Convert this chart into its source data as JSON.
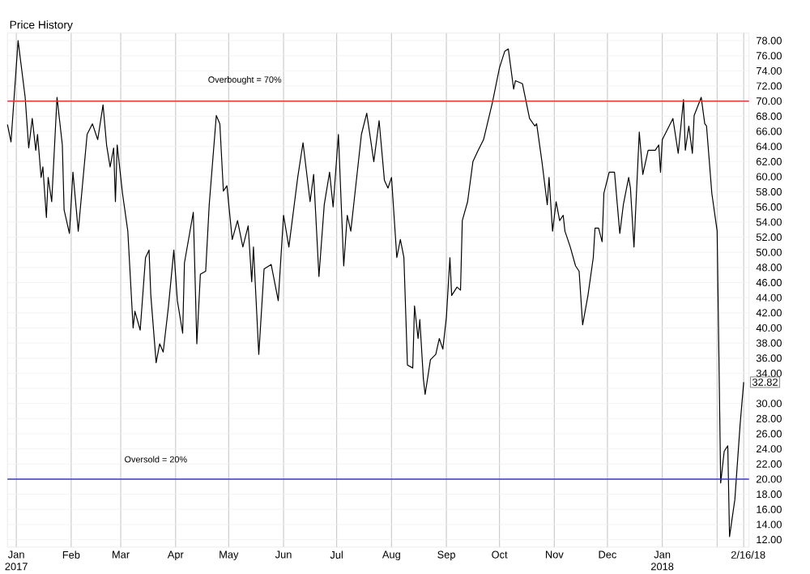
{
  "chart_data": {
    "type": "line",
    "title": "Price History",
    "x": [
      "2016-12-27",
      "2016-12-29",
      "2017-01-02",
      "2017-01-06",
      "2017-01-08",
      "2017-01-10",
      "2017-01-12",
      "2017-01-13",
      "2017-01-15",
      "2017-01-16",
      "2017-01-18",
      "2017-01-19",
      "2017-01-21",
      "2017-01-24",
      "2017-01-27",
      "2017-01-28",
      "2017-01-31",
      "2017-02-02",
      "2017-02-05",
      "2017-02-10",
      "2017-02-13",
      "2017-02-16",
      "2017-02-19",
      "2017-02-21",
      "2017-02-23",
      "2017-02-25",
      "2017-02-26",
      "2017-02-27",
      "2017-03-02",
      "2017-03-05",
      "2017-03-08",
      "2017-03-09",
      "2017-03-12",
      "2017-03-15",
      "2017-03-17",
      "2017-03-18",
      "2017-03-21",
      "2017-03-23",
      "2017-03-25",
      "2017-03-28",
      "2017-03-31",
      "2017-04-02",
      "2017-04-05",
      "2017-04-06",
      "2017-04-11",
      "2017-04-13",
      "2017-04-15",
      "2017-04-18",
      "2017-04-20",
      "2017-04-24",
      "2017-04-26",
      "2017-04-28",
      "2017-04-30",
      "2017-05-03",
      "2017-05-06",
      "2017-05-09",
      "2017-05-12",
      "2017-05-14",
      "2017-05-15",
      "2017-05-18",
      "2017-05-21",
      "2017-05-25",
      "2017-05-29",
      "2017-06-01",
      "2017-06-04",
      "2017-06-09",
      "2017-06-12",
      "2017-06-16",
      "2017-06-18",
      "2017-06-21",
      "2017-06-24",
      "2017-06-27",
      "2017-06-29",
      "2017-07-02",
      "2017-07-05",
      "2017-07-07",
      "2017-07-09",
      "2017-07-12",
      "2017-07-15",
      "2017-07-18",
      "2017-07-22",
      "2017-07-25",
      "2017-07-28",
      "2017-07-30",
      "2017-08-01",
      "2017-08-04",
      "2017-08-06",
      "2017-08-08",
      "2017-08-10",
      "2017-08-13",
      "2017-08-14",
      "2017-08-16",
      "2017-08-17",
      "2017-08-19",
      "2017-08-20",
      "2017-08-23",
      "2017-08-26",
      "2017-08-28",
      "2017-08-30",
      "2017-09-01",
      "2017-09-03",
      "2017-09-04",
      "2017-09-07",
      "2017-09-09",
      "2017-09-10",
      "2017-09-13",
      "2017-09-16",
      "2017-09-19",
      "2017-09-22",
      "2017-09-27",
      "2017-10-01",
      "2017-10-04",
      "2017-10-06",
      "2017-10-09",
      "2017-10-10",
      "2017-10-14",
      "2017-10-18",
      "2017-10-21",
      "2017-10-22",
      "2017-10-25",
      "2017-10-28",
      "2017-10-29",
      "2017-10-31",
      "2017-11-02",
      "2017-11-04",
      "2017-11-06",
      "2017-11-07",
      "2017-11-10",
      "2017-11-13",
      "2017-11-15",
      "2017-11-17",
      "2017-11-20",
      "2017-11-23",
      "2017-11-24",
      "2017-11-26",
      "2017-11-28",
      "2017-11-29",
      "2017-12-02",
      "2017-12-05",
      "2017-12-08",
      "2017-12-10",
      "2017-12-13",
      "2017-12-14",
      "2017-12-16",
      "2017-12-19",
      "2017-12-21",
      "2017-12-24",
      "2017-12-28",
      "2017-12-30",
      "2017-12-31",
      "2018-01-01",
      "2018-01-04",
      "2018-01-07",
      "2018-01-10",
      "2018-01-13",
      "2018-01-14",
      "2018-01-16",
      "2018-01-18",
      "2018-01-19",
      "2018-01-23",
      "2018-01-25",
      "2018-01-26",
      "2018-01-29",
      "2018-02-01",
      "2018-02-03",
      "2018-02-05",
      "2018-02-07",
      "2018-02-08",
      "2018-02-11",
      "2018-02-14",
      "2018-02-16"
    ],
    "series": [
      {
        "color": "#000000",
        "values": [
          66.9,
          64.6,
          78,
          70.5,
          63.8,
          67.7,
          63.5,
          65.6,
          59.9,
          61.3,
          54.6,
          59.9,
          56.7,
          70.5,
          64.2,
          55.6,
          52.5,
          60.6,
          52.8,
          65.6,
          67.0,
          64.9,
          69.5,
          64.2,
          61.3,
          63.8,
          56.7,
          64.2,
          57.8,
          52.8,
          40.0,
          42.2,
          39.7,
          49.3,
          50.3,
          44.3,
          35.4,
          37.9,
          36.8,
          42.9,
          50.3,
          43.6,
          39.3,
          48.6,
          55.3,
          37.9,
          47.1,
          47.5,
          56.3,
          68.1,
          67.0,
          58.1,
          58.8,
          51.7,
          54.2,
          50.7,
          53.5,
          46.1,
          50.7,
          36.5,
          47.8,
          48.4,
          43.6,
          54.9,
          50.7,
          59.9,
          64.5,
          56.7,
          60.3,
          46.8,
          56.3,
          60.6,
          56.0,
          65.6,
          48.2,
          54.9,
          52.8,
          59.2,
          65.6,
          68.4,
          62.0,
          67.4,
          59.5,
          58.5,
          59.9,
          49.3,
          51.7,
          49.3,
          35.1,
          34.7,
          42.9,
          38.6,
          41.1,
          33.3,
          31.2,
          35.8,
          36.5,
          38.6,
          37.2,
          41.4,
          49.3,
          44.3,
          45.4,
          45.0,
          54.2,
          56.7,
          62.0,
          63.5,
          64.9,
          69.8,
          74.4,
          76.6,
          76.9,
          71.6,
          72.7,
          72.3,
          67.7,
          66.7,
          67.0,
          62.0,
          56.3,
          59.9,
          52.8,
          56.7,
          54.2,
          54.9,
          52.8,
          50.7,
          48.2,
          47.5,
          40.4,
          44.3,
          49.3,
          53.2,
          53.2,
          51.4,
          57.8,
          60.6,
          60.6,
          52.5,
          56.3,
          59.9,
          58.5,
          50.7,
          65.9,
          60.3,
          63.5,
          63.5,
          64.2,
          60.6,
          64.9,
          66.3,
          67.7,
          63.1,
          70.2,
          63.5,
          66.7,
          63.1,
          68.1,
          70.5,
          67.0,
          66.7,
          57.8,
          52.8,
          19.5,
          23.7,
          24.4,
          12.4,
          17.3,
          27.3,
          32.82
        ],
        "value_labels": [
          null,
          null,
          null,
          null,
          null,
          null,
          null,
          null,
          null,
          null,
          null,
          null,
          null,
          null,
          null,
          null,
          null,
          null,
          null,
          null,
          null,
          null,
          null,
          null,
          null,
          null,
          null,
          null,
          null,
          null,
          null,
          null,
          null,
          null,
          null,
          null,
          null,
          null,
          null,
          null,
          null,
          null,
          null,
          null,
          null,
          null,
          null,
          null,
          null,
          null,
          null,
          null,
          null,
          null,
          null,
          null,
          null,
          null,
          null,
          null,
          null,
          null,
          null,
          null,
          null,
          null,
          null,
          null,
          null,
          null,
          null,
          null,
          null,
          null,
          null,
          null,
          null,
          null,
          null,
          null,
          null,
          null,
          null,
          null,
          null,
          null,
          null,
          null,
          null,
          null,
          null,
          null,
          null,
          null,
          null,
          null,
          null,
          null,
          null,
          null,
          null,
          null,
          null,
          null,
          null,
          null,
          null,
          null,
          null,
          null,
          null,
          null,
          null,
          null,
          null,
          null,
          null,
          null,
          null,
          null,
          null,
          null,
          null,
          null,
          null,
          null,
          null,
          null,
          null,
          null,
          null,
          null,
          null,
          null,
          null,
          null,
          null,
          null,
          null,
          null,
          null,
          null,
          null,
          null,
          null,
          null,
          null,
          null,
          null,
          null,
          null,
          null,
          null,
          null,
          null,
          null,
          null,
          null,
          null,
          null,
          null,
          null,
          null,
          null,
          null,
          null,
          null,
          null,
          null,
          null,
          "32.82"
        ]
      }
    ],
    "xlim": [
      "2016-12-27",
      "2018-02-19"
    ],
    "xticks": [
      {
        "value": "2017-01-01",
        "label": "Jan 2017"
      },
      {
        "value": "2017-02-01",
        "label": "Feb"
      },
      {
        "value": "2017-03-01",
        "label": "Mar"
      },
      {
        "value": "2017-04-01",
        "label": "Apr"
      },
      {
        "value": "2017-05-01",
        "label": "May"
      },
      {
        "value": "2017-06-01",
        "label": "Jun"
      },
      {
        "value": "2017-07-01",
        "label": "Jul"
      },
      {
        "value": "2017-08-01",
        "label": "Aug"
      },
      {
        "value": "2017-09-01",
        "label": "Sep"
      },
      {
        "value": "2017-10-01",
        "label": "Oct"
      },
      {
        "value": "2017-11-01",
        "label": "Nov"
      },
      {
        "value": "2017-12-01",
        "label": "Dec"
      },
      {
        "value": "2018-01-01",
        "label": "Jan 2018"
      },
      {
        "value": "2018-02-01",
        "label": null
      },
      {
        "value": "2018-02-16",
        "label": "2/16/18"
      }
    ],
    "ylim": [
      11,
      79
    ],
    "yticks": [
      {
        "value": 12,
        "label": "12.00"
      },
      {
        "value": 14,
        "label": "14.00"
      },
      {
        "value": 16,
        "label": "16.00"
      },
      {
        "value": 18,
        "label": "18.00"
      },
      {
        "value": 20,
        "label": "20.00"
      },
      {
        "value": 22,
        "label": "22.00"
      },
      {
        "value": 24,
        "label": "24.00"
      },
      {
        "value": 26,
        "label": "26.00"
      },
      {
        "value": 28,
        "label": "28.00"
      },
      {
        "value": 30,
        "label": "30.00"
      },
      {
        "value": 32,
        "label": null
      },
      {
        "value": 34,
        "label": "34.00"
      },
      {
        "value": 36,
        "label": "36.00"
      },
      {
        "value": 38,
        "label": "38.00"
      },
      {
        "value": 40,
        "label": "40.00"
      },
      {
        "value": 42,
        "label": "42.00"
      },
      {
        "value": 44,
        "label": "44.00"
      },
      {
        "value": 46,
        "label": "46.00"
      },
      {
        "value": 48,
        "label": "48.00"
      },
      {
        "value": 50,
        "label": "50.00"
      },
      {
        "value": 52,
        "label": "52.00"
      },
      {
        "value": 54,
        "label": "54.00"
      },
      {
        "value": 56,
        "label": "56.00"
      },
      {
        "value": 58,
        "label": "58.00"
      },
      {
        "value": 60,
        "label": "60.00"
      },
      {
        "value": 62,
        "label": "62.00"
      },
      {
        "value": 64,
        "label": "64.00"
      },
      {
        "value": 66,
        "label": "66.00"
      },
      {
        "value": 68,
        "label": "68.00"
      },
      {
        "value": 70,
        "label": "70.00"
      },
      {
        "value": 72,
        "label": "72.00"
      },
      {
        "value": 74,
        "label": "74.00"
      },
      {
        "value": 76,
        "label": "76.00"
      },
      {
        "value": 78,
        "label": "78.00"
      }
    ],
    "ref_lines": [
      {
        "axis": "y",
        "value": 70,
        "label": "Overbought = 70%",
        "color": "#d93a3a"
      },
      {
        "axis": "y",
        "value": 20,
        "label": "Oversold = 20%",
        "color": "#3a3ab8"
      }
    ],
    "grid": true,
    "marker": "none",
    "line_style": "solid"
  }
}
